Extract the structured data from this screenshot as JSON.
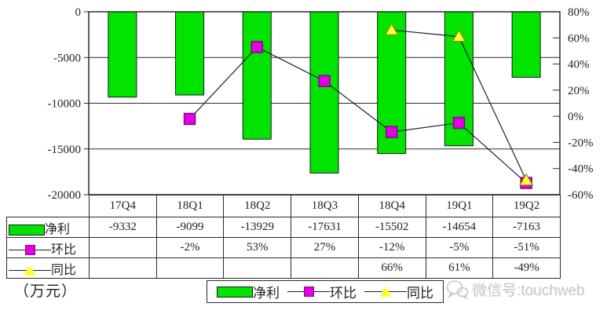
{
  "colors": {
    "bar": "#00e400",
    "bar_border": "#1a1a1a",
    "huanbi_fill": "#e400e4",
    "huanbi_border": "#7c0d7c",
    "tongbi_fill": "#ffff38",
    "tongbi_border": "#8f8f00",
    "line": "#1b1b38",
    "grid": "#2a2a2a",
    "text": "#222222",
    "watermark": "#c7c7c7"
  },
  "chart_data": {
    "type": "bar+line combo",
    "categories": [
      "17Q4",
      "18Q1",
      "18Q2",
      "18Q3",
      "18Q4",
      "19Q1",
      "19Q2"
    ],
    "series": [
      {
        "name": "净利",
        "type": "bar",
        "axis": "left",
        "values": [
          -9332,
          -9099,
          -13929,
          -17631,
          -15502,
          -14654,
          -7163
        ]
      },
      {
        "name": "环比",
        "type": "line",
        "marker": "square",
        "axis": "right",
        "unit": "%",
        "values": [
          null,
          -2,
          53,
          27,
          -12,
          -5,
          -51
        ]
      },
      {
        "name": "同比",
        "type": "line",
        "marker": "triangle",
        "axis": "right",
        "unit": "%",
        "values": [
          null,
          null,
          null,
          null,
          66,
          61,
          -49
        ]
      }
    ],
    "left_axis": {
      "min": -20000,
      "max": 0,
      "unit": "（万元）",
      "tick_labels": [
        "0",
        "-5000",
        "-10000",
        "-15000",
        "-20000"
      ]
    },
    "right_axis": {
      "min": -60,
      "max": 80,
      "tick_labels": [
        "80%",
        "60%",
        "40%",
        "20%",
        "0%",
        "-20%",
        "-40%",
        "-60%"
      ]
    },
    "grid": "horizontal gridlines at left-axis ticks",
    "legend_position": "bottom-center"
  },
  "table": {
    "header": [
      "17Q4",
      "18Q1",
      "18Q2",
      "18Q3",
      "18Q4",
      "19Q1",
      "19Q2"
    ],
    "rows": [
      {
        "label": "净利",
        "key": "bar",
        "cells": [
          "-9332",
          "-9099",
          "-13929",
          "-17631",
          "-15502",
          "-14654",
          "-7163"
        ]
      },
      {
        "label": "环比",
        "key": "square",
        "cells": [
          "",
          "-2%",
          "53%",
          "27%",
          "-12%",
          "-5%",
          "-51%"
        ]
      },
      {
        "label": "同比",
        "key": "triangle",
        "cells": [
          "",
          "",
          "",
          "",
          "66%",
          "61%",
          "-49%"
        ]
      }
    ]
  },
  "legend": {
    "items": [
      {
        "label": "净利",
        "key": "bar"
      },
      {
        "label": "环比",
        "key": "square"
      },
      {
        "label": "同比",
        "key": "triangle"
      }
    ]
  },
  "watermark": {
    "text": "微信号:touchweb",
    "icon": "wechat-icon"
  }
}
